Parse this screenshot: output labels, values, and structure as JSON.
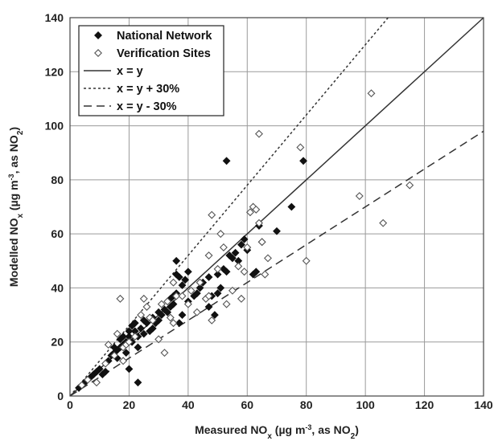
{
  "chart_data": {
    "type": "scatter",
    "xlabel": {
      "pre": "Measured NO",
      "sub": "x",
      "mid": " (µg m",
      "sup": "-3",
      "post": ", as NO",
      "sub2": "2",
      "end": ")"
    },
    "ylabel": {
      "pre": "Modelled NO",
      "sub": "x",
      "mid": " (µg m",
      "sup": "-3",
      "post": ", as NO",
      "sub2": "2",
      "end": ")"
    },
    "xlim": [
      0,
      140
    ],
    "ylim": [
      0,
      140
    ],
    "xticks": [
      "0",
      "20",
      "40",
      "60",
      "80",
      "100",
      "120",
      "140"
    ],
    "yticks": [
      "0",
      "20",
      "40",
      "60",
      "80",
      "100",
      "120",
      "140"
    ],
    "grid": true,
    "legend": {
      "position": "top-left",
      "entries": [
        {
          "label": "National Network",
          "marker": "filled-diamond"
        },
        {
          "label": "Verification Sites",
          "marker": "open-diamond"
        },
        {
          "label": "x = y",
          "line": "solid"
        },
        {
          "label": "x = y + 30%",
          "line": "dotted"
        },
        {
          "label": "x = y - 30%",
          "line": "dashed"
        }
      ]
    },
    "lines": [
      {
        "label": "x = y",
        "slope": 1.0,
        "style": "solid"
      },
      {
        "label": "x = y + 30%",
        "slope": 1.3,
        "style": "dotted"
      },
      {
        "label": "x = y - 30%",
        "slope": 0.7,
        "style": "dashed"
      }
    ],
    "series": [
      {
        "name": "National Network",
        "marker": "filled-diamond",
        "points": [
          [
            3,
            3
          ],
          [
            5,
            5
          ],
          [
            7,
            7
          ],
          [
            8,
            8
          ],
          [
            9,
            9
          ],
          [
            10,
            10
          ],
          [
            11,
            8
          ],
          [
            12,
            9
          ],
          [
            13,
            13
          ],
          [
            14,
            15
          ],
          [
            15,
            16
          ],
          [
            15,
            18
          ],
          [
            16,
            14
          ],
          [
            16,
            17
          ],
          [
            17,
            18
          ],
          [
            17,
            21
          ],
          [
            18,
            19
          ],
          [
            18,
            22
          ],
          [
            19,
            16
          ],
          [
            19,
            20
          ],
          [
            20,
            10
          ],
          [
            20,
            22
          ],
          [
            20,
            24
          ],
          [
            21,
            20
          ],
          [
            21,
            26
          ],
          [
            22,
            24
          ],
          [
            22,
            27
          ],
          [
            23,
            5
          ],
          [
            23,
            18
          ],
          [
            23,
            22
          ],
          [
            24,
            25
          ],
          [
            25,
            28
          ],
          [
            25,
            23
          ],
          [
            26,
            27
          ],
          [
            27,
            24
          ],
          [
            28,
            29
          ],
          [
            28,
            25
          ],
          [
            29,
            27
          ],
          [
            30,
            28
          ],
          [
            30,
            31
          ],
          [
            31,
            30
          ],
          [
            32,
            32
          ],
          [
            33,
            31
          ],
          [
            34,
            33
          ],
          [
            34,
            36
          ],
          [
            35,
            34
          ],
          [
            35,
            37
          ],
          [
            36,
            45
          ],
          [
            36,
            50
          ],
          [
            36,
            38
          ],
          [
            37,
            27
          ],
          [
            37,
            44
          ],
          [
            38,
            41
          ],
          [
            38,
            30
          ],
          [
            39,
            43
          ],
          [
            40,
            35
          ],
          [
            40,
            46
          ],
          [
            42,
            37
          ],
          [
            43,
            38
          ],
          [
            44,
            40
          ],
          [
            45,
            42
          ],
          [
            46,
            36
          ],
          [
            47,
            33
          ],
          [
            47,
            44
          ],
          [
            48,
            37
          ],
          [
            49,
            30
          ],
          [
            50,
            38
          ],
          [
            50,
            45
          ],
          [
            51,
            40
          ],
          [
            52,
            47
          ],
          [
            53,
            46
          ],
          [
            53,
            87
          ],
          [
            54,
            52
          ],
          [
            55,
            51
          ],
          [
            56,
            53
          ],
          [
            57,
            50
          ],
          [
            58,
            56
          ],
          [
            59,
            58
          ],
          [
            60,
            54
          ],
          [
            62,
            45
          ],
          [
            63,
            46
          ],
          [
            64,
            63
          ],
          [
            65,
            57
          ],
          [
            70,
            61
          ],
          [
            75,
            70
          ],
          [
            79,
            87
          ]
        ]
      },
      {
        "name": "Verification Sites",
        "marker": "open-diamond",
        "points": [
          [
            4,
            4
          ],
          [
            6,
            6
          ],
          [
            9,
            5
          ],
          [
            12,
            12
          ],
          [
            13,
            19
          ],
          [
            15,
            15
          ],
          [
            16,
            23
          ],
          [
            17,
            36
          ],
          [
            18,
            13
          ],
          [
            18,
            18
          ],
          [
            19,
            19
          ],
          [
            20,
            20
          ],
          [
            22,
            22
          ],
          [
            24,
            30
          ],
          [
            25,
            36
          ],
          [
            26,
            33
          ],
          [
            27,
            29
          ],
          [
            28,
            28
          ],
          [
            30,
            21
          ],
          [
            31,
            34
          ],
          [
            32,
            16
          ],
          [
            33,
            35
          ],
          [
            34,
            29
          ],
          [
            35,
            27
          ],
          [
            35,
            42
          ],
          [
            36,
            37
          ],
          [
            38,
            37
          ],
          [
            40,
            34
          ],
          [
            41,
            39
          ],
          [
            43,
            31
          ],
          [
            44,
            42
          ],
          [
            46,
            36
          ],
          [
            47,
            37
          ],
          [
            47,
            52
          ],
          [
            48,
            67
          ],
          [
            48,
            28
          ],
          [
            50,
            47
          ],
          [
            51,
            60
          ],
          [
            52,
            55
          ],
          [
            53,
            34
          ],
          [
            55,
            39
          ],
          [
            57,
            48
          ],
          [
            58,
            36
          ],
          [
            59,
            46
          ],
          [
            60,
            55
          ],
          [
            61,
            68
          ],
          [
            62,
            70
          ],
          [
            63,
            69
          ],
          [
            64,
            64
          ],
          [
            64,
            97
          ],
          [
            65,
            57
          ],
          [
            66,
            45
          ],
          [
            67,
            51
          ],
          [
            78,
            92
          ],
          [
            80,
            50
          ],
          [
            98,
            74
          ],
          [
            102,
            112
          ],
          [
            106,
            64
          ],
          [
            115,
            78
          ]
        ]
      }
    ]
  }
}
